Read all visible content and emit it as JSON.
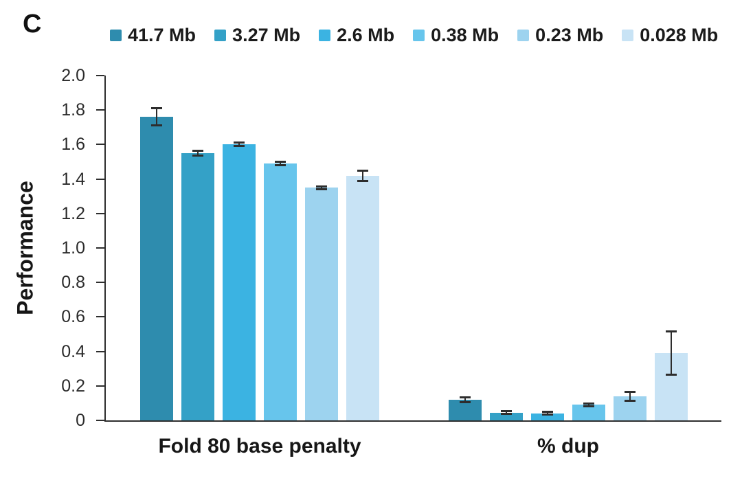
{
  "panel": {
    "label": "C"
  },
  "chart_data": {
    "type": "bar",
    "title": "",
    "ylabel": "Performance",
    "xlabel": "",
    "ylim": [
      0,
      2.0
    ],
    "ytick_labels": [
      "0",
      "0.2",
      "0.4",
      "0.6",
      "0.8",
      "1.0",
      "1.2",
      "1.4",
      "1.6",
      "1.8",
      "2.0"
    ],
    "grid": false,
    "legend_position": "top",
    "error_bars": true,
    "categories": [
      "Fold 80 base penalty",
      "% dup"
    ],
    "series": [
      {
        "name": "41.7 Mb",
        "color": "#2E8CAE",
        "values": [
          1.76,
          0.12
        ],
        "errors": [
          0.05,
          0.015
        ]
      },
      {
        "name": "3.27 Mb",
        "color": "#34A1C7",
        "values": [
          1.55,
          0.045
        ],
        "errors": [
          0.015,
          0.008
        ]
      },
      {
        "name": "2.6 Mb",
        "color": "#3BB3E2",
        "values": [
          1.6,
          0.04
        ],
        "errors": [
          0.01,
          0.008
        ]
      },
      {
        "name": "0.38 Mb",
        "color": "#67C5EC",
        "values": [
          1.49,
          0.09
        ],
        "errors": [
          0.01,
          0.008
        ]
      },
      {
        "name": "0.23 Mb",
        "color": "#9DD3EF",
        "values": [
          1.35,
          0.14
        ],
        "errors": [
          0.008,
          0.027
        ]
      },
      {
        "name": "0.028 Mb",
        "color": "#C8E3F5",
        "values": [
          1.42,
          0.39
        ],
        "errors": [
          0.03,
          0.125
        ]
      }
    ],
    "axis_color": "#2e2e2e",
    "error_bar_color": "#2d2d2d"
  }
}
